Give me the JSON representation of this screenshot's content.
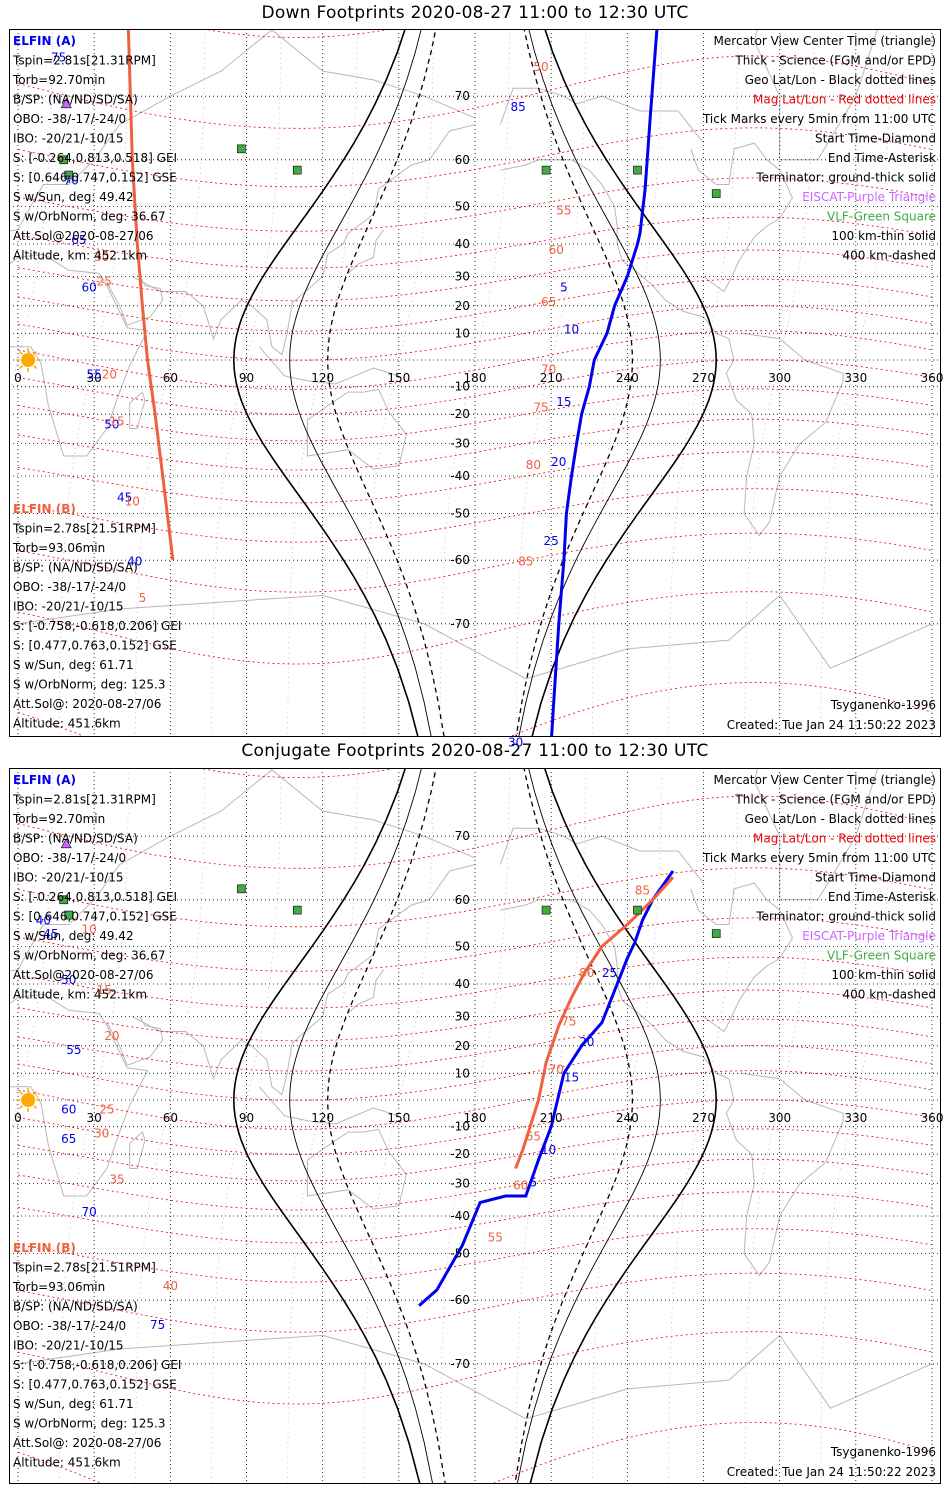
{
  "panels": [
    {
      "title": "Down Footprints 2020-08-27 11:00 to 12:30 UTC",
      "left_info": {
        "a_header": "ELFIN (A)",
        "a_lines": [
          "Tspin=2.81s[21.31RPM]",
          "Torb=92.70min",
          "B/SP: (NA/ND/SD/SA)",
          "OBO: -38/-17/-24/0",
          "IBO: -20/21/-10/15",
          "S: [-0.264,0.813,0.518] GEI",
          "S: [0.646,0.747,0.152] GSE",
          "S w/Sun, deg: 49.42",
          "S w/OrbNorm, deg: 36.67",
          "Att.Sol@2020-08-27/06",
          "Altitude, km: 452.1km"
        ],
        "b_header": "ELFIN (B)",
        "b_lines": [
          "Tspin=2.78s[21.51RPM]",
          "Torb=93.06min",
          "B/SP: (NA/ND/SD/SA)",
          "OBO: -38/-17/-24/0",
          "IBO: -20/21/-10/15",
          "S: [-0.758,-0.618,0.206] GEI",
          "S: [0.477,0.763,0.152] GSE",
          "S w/Sun, deg: 61.71",
          "S w/OrbNorm, deg: 125.3",
          "Att.Sol@: 2020-08-27/06",
          "Altitude: 451.6km"
        ]
      },
      "right_legend": [
        "Mercator View Center Time (triangle)",
        "Thick - Science (FGM and/or EPD)",
        "Geo Lat/Lon - Black dotted lines",
        "Mag Lat/Lon - Red dotted lines",
        "Tick Marks every 5min from 11:00 UTC",
        "Start Time-Diamond",
        "End Time-Asterisk",
        "Terminator: ground-thick solid",
        "EISCAT-Purple Triangle",
        "VLF-Green Square",
        "100 km-thin solid",
        "400 km-dashed"
      ],
      "model": "Tsyganenko-1996",
      "created": "Created: Tue Jan 24 11:50:22 2023"
    },
    {
      "title": "Conjugate Footprints 2020-08-27 11:00 to 12:30 UTC",
      "left_info": {
        "a_header": "ELFIN (A)",
        "a_lines": [
          "Tspin=2.81s[21.31RPM]",
          "Torb=92.70min",
          "B/SP: (NA/ND/SD/SA)",
          "OBO: -38/-17/-24/0",
          "IBO: -20/21/-10/15",
          "S: [-0.264,0.813,0.518] GEI",
          "S: [0.646,0.747,0.152] GSE",
          "S w/Sun, deg: 49.42",
          "S w/OrbNorm, deg: 36.67",
          "Att.Sol@2020-08-27/06",
          "Altitude, km: 452.1km"
        ],
        "b_header": "ELFIN (B)",
        "b_lines": [
          "Tspin=2.78s[21.51RPM]",
          "Torb=93.06min",
          "B/SP: (NA/ND/SD/SA)",
          "OBO: -38/-17/-24/0",
          "IBO: -20/21/-10/15",
          "S: [-0.758,-0.618,0.206] GEI",
          "S: [0.477,0.763,0.152] GSE",
          "S w/Sun, deg: 61.71",
          "S w/OrbNorm, deg: 125.3",
          "Att.Sol@: 2020-08-27/06",
          "Altitude: 451.6km"
        ]
      },
      "right_legend": [
        "Mercator View Center Time (triangle)",
        "Thick - Science (FGM and/or EPD)",
        "Geo Lat/Lon - Black dotted lines",
        "Mag Lat/Lon - Red dotted lines",
        "Tick Marks every 5min from 11:00 UTC",
        "Start Time-Diamond",
        "End Time-Asterisk",
        "Terminator: ground-thick solid",
        "EISCAT-Purple Triangle",
        "VLF-Green Square",
        "100 km-thin solid",
        "400 km-dashed"
      ],
      "model": "Tsyganenko-1996",
      "created": "Created: Tue Jan 24 11:50:22 2023"
    }
  ],
  "colors": {
    "elfin_a": "#0000ee",
    "elfin_b": "#f06040",
    "mag_grid": "#ee0000",
    "geo_grid": "#000000",
    "eiscat": "#cc66ff",
    "vlf": "#44aa44",
    "coast": "#b8b8b8",
    "sun": "#ffaa00"
  },
  "chart_data": [
    {
      "type": "scatter",
      "projection": "mercator",
      "title": "Down Footprints 2020-08-27 11:00 to 12:30 UTC",
      "xlim": [
        0,
        360
      ],
      "ylim": [
        -85,
        85
      ],
      "x_ticks": [
        0,
        30,
        60,
        90,
        120,
        150,
        180,
        210,
        240,
        270,
        300,
        330,
        360
      ],
      "y_ticks": [
        -70,
        -60,
        -50,
        -40,
        -30,
        -20,
        -10,
        10,
        20,
        30,
        40,
        50,
        60,
        70
      ],
      "grid": true,
      "series": [
        {
          "name": "ELFIN (A)",
          "color": "#0000ee",
          "lon": [
            209,
            211,
            213,
            215,
            216,
            218,
            220,
            222,
            225,
            227,
            232,
            235,
            240,
            244,
            245,
            247,
            249,
            252
          ],
          "lat": [
            -83,
            -78,
            -70,
            -60,
            -50,
            -40,
            -30,
            -20,
            -10,
            0,
            10,
            20,
            30,
            40,
            43,
            54,
            67,
            78
          ],
          "tick_labels": [
            {
              "t": "5",
              "lon": 215,
              "lat": 25
            },
            {
              "t": "10",
              "lon": 218,
              "lat": 10
            },
            {
              "t": "15",
              "lon": 215,
              "lat": -17
            },
            {
              "t": "20",
              "lon": 213,
              "lat": -37
            },
            {
              "t": "25",
              "lon": 210,
              "lat": -57
            },
            {
              "t": "30",
              "lon": 196,
              "lat": -81
            },
            {
              "t": "45",
              "lon": 42,
              "lat": -47
            },
            {
              "t": "40",
              "lon": 46,
              "lat": -61
            },
            {
              "t": "50",
              "lon": 37,
              "lat": -25
            },
            {
              "t": "55",
              "lon": 30,
              "lat": -7
            },
            {
              "t": "60",
              "lon": 28,
              "lat": 25
            },
            {
              "t": "65",
              "lon": 24,
              "lat": 40
            },
            {
              "t": "70",
              "lon": 21,
              "lat": 55
            },
            {
              "t": "75",
              "lon": 16,
              "lat": 74
            },
            {
              "t": "85",
              "lon": 197,
              "lat": 68
            }
          ]
        },
        {
          "name": "ELFIN (B)",
          "color": "#f06040",
          "lon": [
            43,
            45,
            47,
            49,
            51,
            54,
            57,
            61
          ],
          "lat": [
            80,
            60,
            40,
            20,
            0,
            -20,
            -40,
            -60
          ],
          "tick_labels": [
            {
              "t": "50",
              "lon": 206,
              "lat": 73
            },
            {
              "t": "55",
              "lon": 215,
              "lat": 48
            },
            {
              "t": "60",
              "lon": 212,
              "lat": 37
            },
            {
              "t": "65",
              "lon": 209,
              "lat": 20
            },
            {
              "t": "70",
              "lon": 209,
              "lat": -5
            },
            {
              "t": "75",
              "lon": 206,
              "lat": -19
            },
            {
              "t": "80",
              "lon": 203,
              "lat": -38
            },
            {
              "t": "85",
              "lon": 200,
              "lat": -61
            },
            {
              "t": "30",
              "lon": 33,
              "lat": 35
            },
            {
              "t": "25",
              "lon": 34,
              "lat": 27
            },
            {
              "t": "20",
              "lon": 36,
              "lat": -7
            },
            {
              "t": "15",
              "lon": 39,
              "lat": -24
            },
            {
              "t": "10",
              "lon": 45,
              "lat": -48
            },
            {
              "t": "5",
              "lon": 49,
              "lat": -67
            }
          ]
        }
      ]
    },
    {
      "type": "scatter",
      "projection": "mercator",
      "title": "Conjugate Footprints 2020-08-27 11:00 to 12:30 UTC",
      "xlim": [
        0,
        360
      ],
      "ylim": [
        -85,
        85
      ],
      "x_ticks": [
        0,
        30,
        60,
        90,
        120,
        150,
        180,
        210,
        240,
        270,
        300,
        330,
        360
      ],
      "y_ticks": [
        -70,
        -60,
        -50,
        -40,
        -30,
        -20,
        -10,
        10,
        20,
        30,
        40,
        50,
        60,
        70
      ],
      "grid": true,
      "series": [
        {
          "name": "ELFIN (A)",
          "color": "#0000ee",
          "lon": [
            158,
            165,
            175,
            182,
            192,
            200,
            205,
            210,
            215,
            222,
            230,
            236,
            240,
            243,
            246,
            250,
            258
          ],
          "lat": [
            -61,
            -58,
            -48,
            -36,
            -34,
            -34,
            -22,
            -10,
            10,
            20,
            28,
            40,
            47,
            51,
            56,
            60,
            65
          ],
          "tick_labels": [
            {
              "t": "5",
              "lon": 203,
              "lat": -31
            },
            {
              "t": "10",
              "lon": 209,
              "lat": -20
            },
            {
              "t": "15",
              "lon": 218,
              "lat": 7
            },
            {
              "t": "20",
              "lon": 224,
              "lat": 20
            },
            {
              "t": "25",
              "lon": 233,
              "lat": 42
            },
            {
              "t": "40",
              "lon": 10,
              "lat": 55
            },
            {
              "t": "45",
              "lon": 13,
              "lat": 52
            },
            {
              "t": "50",
              "lon": 20,
              "lat": 40
            },
            {
              "t": "55",
              "lon": 22,
              "lat": 17
            },
            {
              "t": "60",
              "lon": 20,
              "lat": -5
            },
            {
              "t": "65",
              "lon": 20,
              "lat": -16
            },
            {
              "t": "70",
              "lon": 28,
              "lat": -40
            },
            {
              "t": "75",
              "lon": 55,
              "lat": -65
            }
          ]
        },
        {
          "name": "ELFIN (B)",
          "color": "#f06040",
          "lon": [
            196,
            199,
            205,
            208,
            213,
            218,
            223,
            230,
            240,
            250,
            258
          ],
          "lat": [
            -25,
            -18,
            0,
            14,
            27,
            36,
            43,
            50,
            55,
            60,
            64
          ],
          "tick_labels": [
            {
              "t": "55",
              "lon": 188,
              "lat": -47
            },
            {
              "t": "60",
              "lon": 198,
              "lat": -32
            },
            {
              "t": "65",
              "lon": 203,
              "lat": -15
            },
            {
              "t": "70",
              "lon": 212,
              "lat": 10
            },
            {
              "t": "75",
              "lon": 217,
              "lat": 27
            },
            {
              "t": "80",
              "lon": 224,
              "lat": 42
            },
            {
              "t": "85",
              "lon": 246,
              "lat": 61
            },
            {
              "t": "10",
              "lon": 28,
              "lat": 53
            },
            {
              "t": "15",
              "lon": 34,
              "lat": 37
            },
            {
              "t": "20",
              "lon": 37,
              "lat": 22
            },
            {
              "t": "25",
              "lon": 35,
              "lat": -5
            },
            {
              "t": "30",
              "lon": 33,
              "lat": -14
            },
            {
              "t": "35",
              "lon": 39,
              "lat": -30
            },
            {
              "t": "40",
              "lon": 60,
              "lat": -58
            }
          ]
        }
      ]
    }
  ]
}
